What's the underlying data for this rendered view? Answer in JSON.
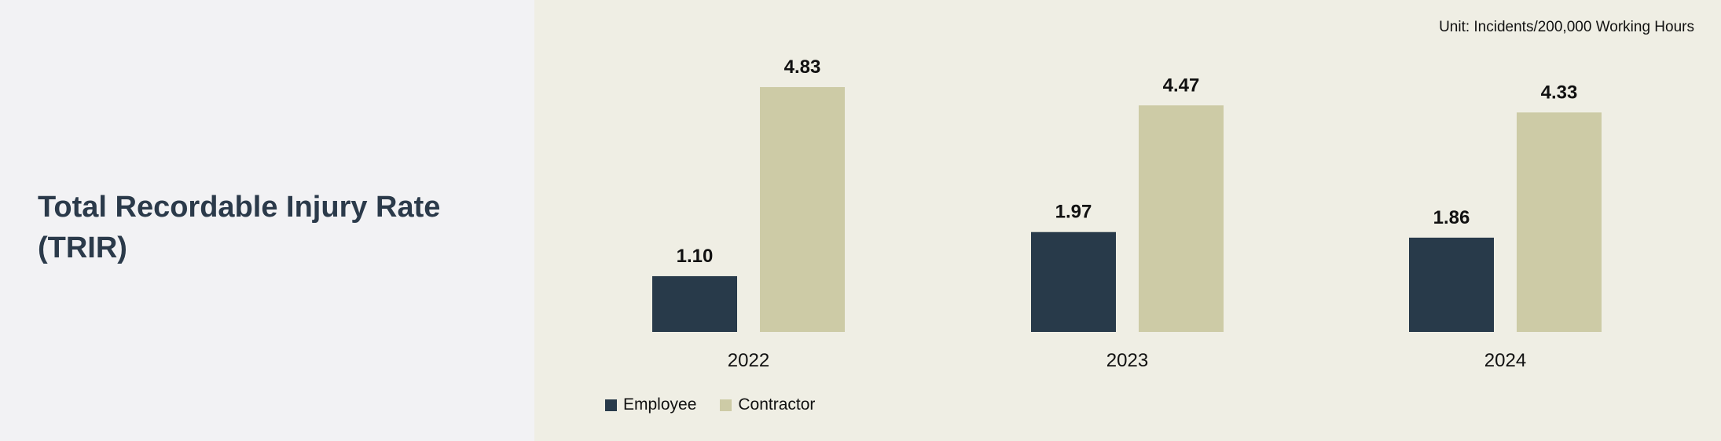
{
  "title": "Total Recordable Injury Rate (TRIR)",
  "unit": "Unit: Incidents/200,000 Working Hours",
  "colors": {
    "employee": "#283a4a",
    "contractor": "#cdcba6",
    "panel": "#efeee4",
    "left_panel": "#f2f2f4",
    "title": "#2b3a4a"
  },
  "chart_data": {
    "type": "bar",
    "categories": [
      "2022",
      "2023",
      "2024"
    ],
    "series": [
      {
        "name": "Employee",
        "values": [
          1.1,
          1.97,
          1.86
        ],
        "labels": [
          "1.10",
          "1.97",
          "1.86"
        ]
      },
      {
        "name": "Contractor",
        "values": [
          4.83,
          4.47,
          4.33
        ],
        "labels": [
          "4.83",
          "4.47",
          "4.33"
        ]
      }
    ],
    "ylim": [
      0,
      4.83
    ],
    "grid": false,
    "legend_position": "bottom-left",
    "title": "",
    "xlabel": "",
    "ylabel": ""
  }
}
